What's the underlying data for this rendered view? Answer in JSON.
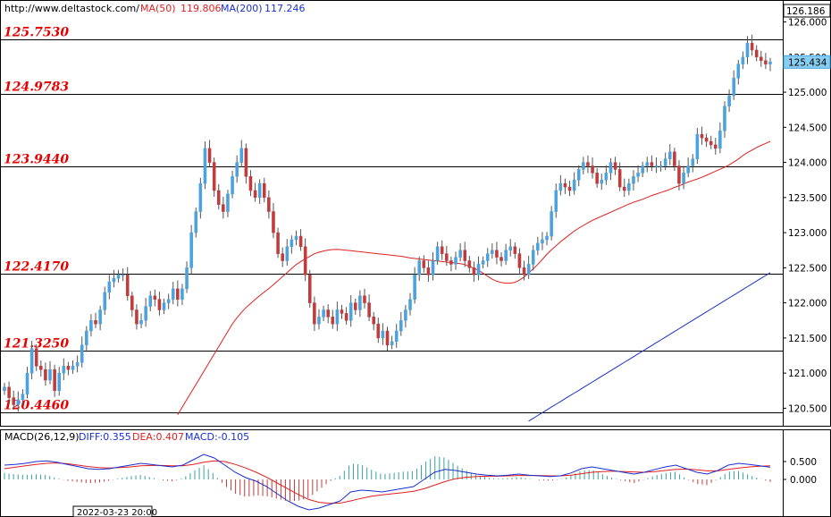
{
  "header": {
    "source": "http://www.deltastock.com/",
    "ma50_label": "MA(50)",
    "ma50_value": "119.806",
    "ma200_label": "MA(200)",
    "ma200_value": "117.246"
  },
  "price_axis": {
    "top_label": "126.186",
    "current_label": "125.434"
  },
  "macd_header": {
    "title": "MACD(26,12,9)",
    "diff": "DIFF:0.355",
    "dea": "DEA:0.407",
    "macd": "MACD:-0.105"
  },
  "date_label": "2022-03-23 20:00",
  "colors": {
    "level": "#e60000",
    "up": "#4aa3df",
    "down": "#c23b3b",
    "ma50": "#e02020",
    "ma200": "#1a2fd0",
    "diff": "#1a2fd0",
    "dea": "#e02020",
    "hist": "#3aa0a0"
  },
  "chart_data": [
    {
      "type": "candlestick",
      "ylim": [
        120.25,
        126.3
      ],
      "y_ticks": [
        "126.000",
        "125.500",
        "125.000",
        "124.500",
        "124.000",
        "123.500",
        "123.000",
        "122.500",
        "122.000",
        "121.500",
        "121.000",
        "120.500"
      ],
      "levels": [
        {
          "label": "125.7530",
          "value": 125.753
        },
        {
          "label": "124.9783",
          "value": 124.9783
        },
        {
          "label": "123.9440",
          "value": 123.944
        },
        {
          "label": "122.4170",
          "value": 122.417
        },
        {
          "label": "121.3250",
          "value": 121.325
        },
        {
          "label": "120.4460",
          "value": 120.446
        }
      ],
      "closes": [
        120.8,
        120.65,
        120.55,
        120.62,
        120.7,
        121.0,
        121.35,
        121.1,
        121.05,
        120.9,
        121.05,
        120.75,
        121.0,
        121.1,
        121.05,
        121.1,
        121.15,
        121.4,
        121.6,
        121.75,
        121.7,
        121.9,
        122.15,
        122.3,
        122.35,
        122.4,
        122.4,
        122.1,
        121.9,
        121.7,
        121.75,
        121.95,
        122.1,
        122.05,
        121.9,
        122.0,
        122.05,
        122.2,
        122.05,
        122.2,
        122.5,
        123.0,
        123.3,
        123.7,
        124.2,
        124.0,
        123.6,
        123.4,
        123.3,
        123.55,
        123.8,
        124.0,
        124.2,
        123.8,
        123.6,
        123.5,
        123.7,
        123.5,
        123.3,
        123.0,
        122.7,
        122.6,
        122.8,
        122.9,
        122.95,
        122.8,
        122.4,
        122.0,
        121.7,
        121.8,
        121.9,
        121.8,
        121.7,
        121.9,
        121.85,
        121.75,
        122.0,
        121.9,
        122.1,
        122.0,
        121.8,
        121.7,
        121.5,
        121.6,
        121.4,
        121.45,
        121.6,
        121.75,
        121.9,
        122.05,
        122.4,
        122.6,
        122.5,
        122.4,
        122.6,
        122.8,
        122.7,
        122.6,
        122.55,
        122.65,
        122.75,
        122.6,
        122.5,
        122.4,
        122.55,
        122.6,
        122.7,
        122.75,
        122.65,
        122.6,
        122.75,
        122.8,
        122.7,
        122.5,
        122.4,
        122.55,
        122.75,
        122.85,
        122.9,
        122.95,
        123.3,
        123.6,
        123.7,
        123.65,
        123.6,
        123.75,
        123.9,
        124.0,
        123.95,
        123.85,
        123.7,
        123.75,
        123.85,
        124.0,
        123.9,
        123.65,
        123.6,
        123.7,
        123.8,
        123.85,
        123.95,
        124.0,
        123.95,
        123.95,
        123.95,
        124.05,
        124.15,
        123.95,
        123.7,
        123.85,
        123.95,
        124.05,
        124.4,
        124.35,
        124.3,
        124.25,
        124.2,
        124.45,
        124.8,
        124.95,
        125.2,
        125.4,
        125.5,
        125.7,
        125.6,
        125.5,
        125.45,
        125.4,
        125.43
      ],
      "ma50": [
        null,
        null,
        null,
        null,
        null,
        null,
        null,
        null,
        null,
        null,
        null,
        null,
        null,
        null,
        null,
        null,
        null,
        null,
        null,
        null,
        null,
        null,
        null,
        null,
        null,
        null,
        null,
        120.35,
        120.5,
        120.65,
        120.8,
        120.95,
        121.1,
        121.25,
        121.4,
        121.55,
        121.7,
        121.82,
        121.92,
        122.0,
        122.08,
        122.15,
        122.22,
        122.3,
        122.38,
        122.46,
        122.54,
        122.6,
        122.65,
        122.7,
        122.73,
        122.75,
        122.76,
        122.76,
        122.75,
        122.74,
        122.73,
        122.72,
        122.71,
        122.7,
        122.69,
        122.68,
        122.67,
        122.66,
        122.64,
        122.63,
        122.62,
        122.61,
        122.6,
        122.59,
        122.58,
        122.57,
        122.56,
        122.54,
        122.5,
        122.46,
        122.4,
        122.34,
        122.3,
        122.28,
        122.28,
        122.3,
        122.36,
        122.44,
        122.52,
        122.62,
        122.72,
        122.8,
        122.88,
        122.95,
        123.02,
        123.08,
        123.13,
        123.18,
        123.22,
        123.26,
        123.3,
        123.34,
        123.38,
        123.42,
        123.45,
        123.48,
        123.52,
        123.55,
        123.58,
        123.61,
        123.65,
        123.68,
        123.72,
        123.75,
        123.78,
        123.82,
        123.86,
        123.9,
        123.94,
        123.99,
        124.05,
        124.12,
        124.17,
        124.22,
        124.26,
        124.3
      ],
      "ma200": [
        null,
        null,
        null,
        null,
        null,
        null,
        null,
        null,
        null,
        null,
        null,
        null,
        null,
        null,
        null,
        null,
        null,
        null,
        null,
        null,
        null,
        null,
        null,
        null,
        null,
        null,
        null,
        null,
        null,
        null,
        null,
        null,
        null,
        null,
        null,
        null,
        null,
        null,
        null,
        null,
        null,
        null,
        null,
        null,
        null,
        null,
        null,
        null,
        null,
        null,
        null,
        null,
        null,
        null,
        null,
        null,
        null,
        null,
        null,
        null,
        null,
        null,
        null,
        null,
        null,
        null,
        null,
        null,
        null,
        null,
        null,
        null,
        null,
        null,
        null,
        null,
        null,
        null,
        null,
        null,
        null,
        null,
        null,
        null,
        null,
        null,
        null,
        null,
        null,
        null,
        null,
        120.28,
        120.33,
        120.38,
        120.43,
        120.48,
        120.53,
        120.58,
        120.63,
        120.68,
        120.73,
        120.78,
        120.83,
        120.88,
        120.93,
        120.98,
        121.03,
        121.08,
        121.13,
        121.18,
        121.23,
        121.28,
        121.33,
        121.38,
        121.43,
        121.48,
        121.53,
        121.58,
        121.63,
        121.68,
        121.73,
        121.78,
        121.83,
        121.88,
        121.93,
        121.98,
        122.03,
        122.08,
        122.13,
        122.18,
        122.23,
        122.28,
        122.33,
        122.38,
        122.43
      ]
    },
    {
      "type": "macd",
      "ylim": [
        -0.95,
        0.95
      ],
      "y_ticks": [
        "0.500",
        "0.000"
      ],
      "diff": [
        0.4,
        0.42,
        0.45,
        0.5,
        0.52,
        0.48,
        0.42,
        0.36,
        0.3,
        0.28,
        0.3,
        0.35,
        0.4,
        0.45,
        0.42,
        0.38,
        0.35,
        0.4,
        0.55,
        0.7,
        0.6,
        0.4,
        0.2,
        0.05,
        -0.05,
        -0.2,
        -0.4,
        -0.6,
        -0.75,
        -0.85,
        -0.8,
        -0.7,
        -0.6,
        -0.35,
        -0.3,
        -0.32,
        -0.35,
        -0.3,
        -0.25,
        -0.2,
        0.0,
        0.2,
        0.28,
        0.25,
        0.2,
        0.15,
        0.12,
        0.1,
        0.12,
        0.15,
        0.12,
        0.1,
        0.08,
        0.1,
        0.18,
        0.3,
        0.35,
        0.3,
        0.25,
        0.2,
        0.15,
        0.2,
        0.28,
        0.35,
        0.4,
        0.3,
        0.2,
        0.15,
        0.25,
        0.4,
        0.45,
        0.42,
        0.38,
        0.34
      ],
      "dea": [
        0.3,
        0.34,
        0.38,
        0.42,
        0.45,
        0.46,
        0.44,
        0.4,
        0.36,
        0.33,
        0.32,
        0.33,
        0.35,
        0.38,
        0.39,
        0.39,
        0.38,
        0.38,
        0.42,
        0.48,
        0.52,
        0.5,
        0.42,
        0.32,
        0.2,
        0.06,
        -0.1,
        -0.26,
        -0.42,
        -0.56,
        -0.64,
        -0.67,
        -0.66,
        -0.6,
        -0.53,
        -0.47,
        -0.43,
        -0.4,
        -0.37,
        -0.33,
        -0.26,
        -0.16,
        -0.06,
        0.02,
        0.06,
        0.08,
        0.09,
        0.09,
        0.1,
        0.11,
        0.11,
        0.11,
        0.1,
        0.1,
        0.12,
        0.16,
        0.2,
        0.22,
        0.23,
        0.22,
        0.21,
        0.2,
        0.22,
        0.25,
        0.28,
        0.29,
        0.27,
        0.24,
        0.24,
        0.28,
        0.32,
        0.35,
        0.37,
        0.38
      ]
    }
  ]
}
